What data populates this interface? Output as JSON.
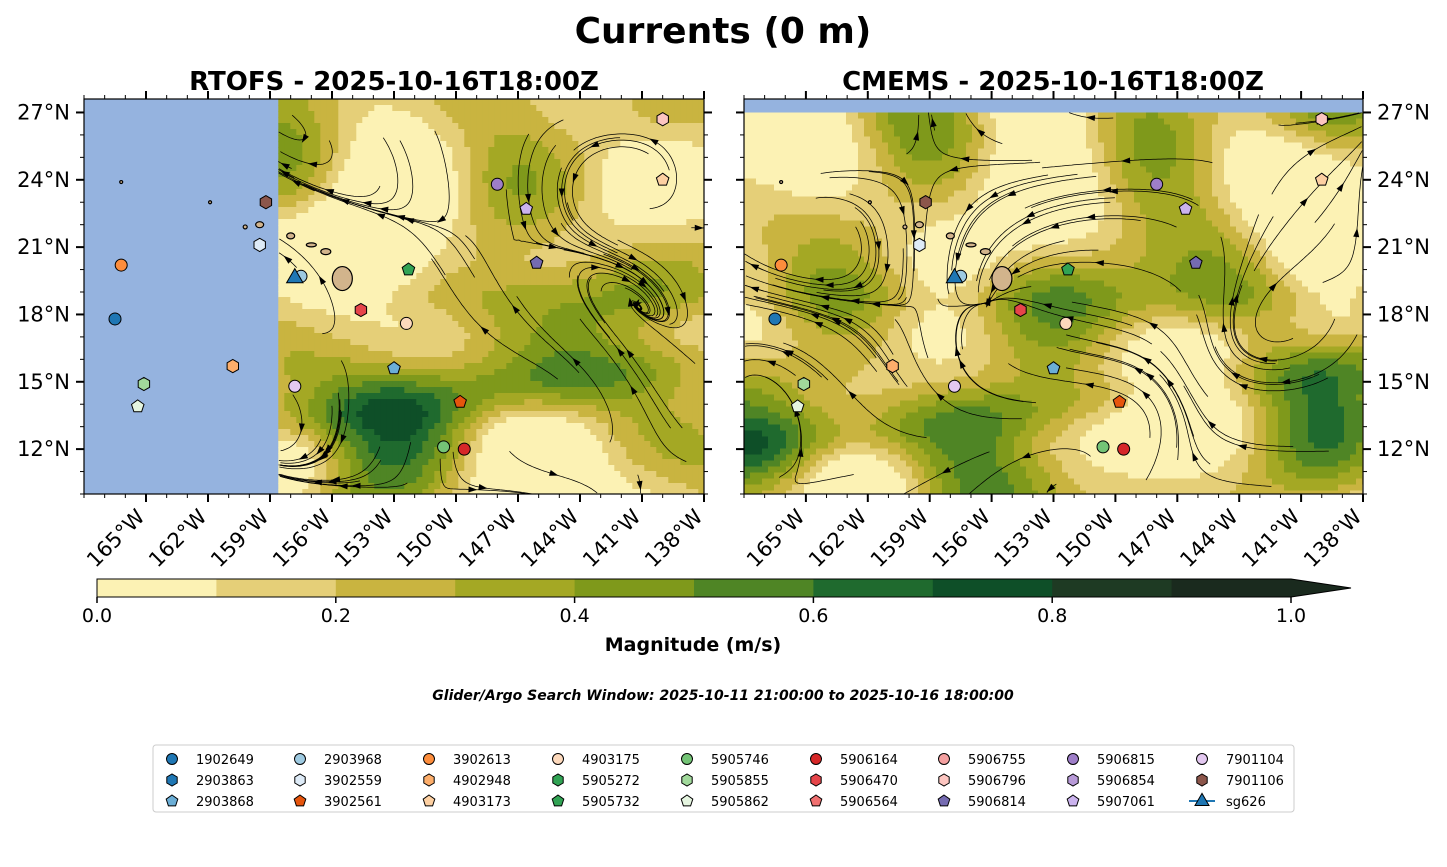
{
  "title": "Currents (0 m)",
  "search_window": "Glider/Argo Search Window: 2025-10-11 21:00:00 to 2025-10-16 18:00:00",
  "colors": {
    "ocean": "#95b3df",
    "land": "#d2b48c",
    "bins": [
      "#fcf2b4",
      "#e5cf78",
      "#c9b440",
      "#a4a824",
      "#7f991b",
      "#4f8525",
      "#1f6a2e",
      "#0e4f28",
      "#1e3a23",
      "#1a2a1e"
    ]
  },
  "colorbar": {
    "label": "Magnitude (m/s)",
    "ticks": [
      "0.0",
      "0.2",
      "0.4",
      "0.6",
      "0.8",
      "1.0"
    ],
    "tick_values": [
      0,
      0.2,
      0.4,
      0.6,
      0.8,
      1.0
    ],
    "min": 0,
    "max": 1.0,
    "step": 0.1,
    "extend": "max"
  },
  "chart_data": [
    {
      "type": "heatmap",
      "subtype": "streamplot-map",
      "title": "RTOFS - 2025-10-16T18:00Z",
      "xlim": [
        -168,
        -138
      ],
      "ylim": [
        10,
        27.6
      ],
      "x_ticks": [
        -165,
        -162,
        -159,
        -156,
        -153,
        -150,
        -147,
        -144,
        -141,
        -138
      ],
      "x_tick_labels": [
        "165°W",
        "162°W",
        "159°W",
        "156°W",
        "153°W",
        "150°W",
        "147°W",
        "144°W",
        "141°W",
        "138°W"
      ],
      "y_ticks": [
        12,
        15,
        18,
        21,
        24,
        27
      ],
      "y_tick_labels": [
        "12°N",
        "15°N",
        "18°N",
        "21°N",
        "24°N",
        "27°N"
      ],
      "y_axis_side": "left",
      "data_lon_range": [
        -158.6,
        -138
      ],
      "seed": 11
    },
    {
      "type": "heatmap",
      "subtype": "streamplot-map",
      "title": "CMEMS - 2025-10-16T18:00Z",
      "xlim": [
        -168,
        -138
      ],
      "ylim": [
        10,
        27.6
      ],
      "x_ticks": [
        -165,
        -162,
        -159,
        -156,
        -153,
        -150,
        -147,
        -144,
        -141,
        -138
      ],
      "x_tick_labels": [
        "165°W",
        "162°W",
        "159°W",
        "156°W",
        "153°W",
        "150°W",
        "147°W",
        "144°W",
        "141°W",
        "138°W"
      ],
      "y_ticks": [
        12,
        15,
        18,
        21,
        24,
        27
      ],
      "y_tick_labels": [
        "12°N",
        "15°N",
        "18°N",
        "21°N",
        "24°N",
        "27°N"
      ],
      "y_axis_side": "right",
      "data_lon_range": [
        -168,
        -138
      ],
      "data_lat_max": 27,
      "seed": 37
    }
  ],
  "floats": [
    {
      "id": "1902649",
      "lon": -166.5,
      "lat": 17.8,
      "shape": "circle",
      "color": "#1f77b4"
    },
    {
      "id": "2903863",
      "lon": -166.5,
      "lat": 17.8,
      "shape": "hexagon",
      "color": "#1f77b4",
      "hidden": true
    },
    {
      "id": "2903868",
      "lon": -153.0,
      "lat": 15.6,
      "shape": "pentagon",
      "color": "#6baed6"
    },
    {
      "id": "2903968",
      "lon": -157.5,
      "lat": 19.7,
      "shape": "circle",
      "color": "#9ecae1"
    },
    {
      "id": "3902559",
      "lon": -159.5,
      "lat": 21.1,
      "shape": "hexagon",
      "color": "#deebf7"
    },
    {
      "id": "3902561",
      "lon": -149.8,
      "lat": 14.1,
      "shape": "pentagon",
      "color": "#e6550d"
    },
    {
      "id": "3902613",
      "lon": -166.2,
      "lat": 20.2,
      "shape": "circle",
      "color": "#fd8d3c"
    },
    {
      "id": "4902948",
      "lon": -160.8,
      "lat": 15.7,
      "shape": "hexagon",
      "color": "#fdae6b"
    },
    {
      "id": "4903173",
      "lon": -140.0,
      "lat": 24.0,
      "shape": "pentagon",
      "color": "#fdd0a2"
    },
    {
      "id": "4903175",
      "lon": -152.4,
      "lat": 17.6,
      "shape": "circle",
      "color": "#fdd9bc"
    },
    {
      "id": "5905272",
      "lon": -159.2,
      "lat": 23.0,
      "shape": "hexagon",
      "color": "#31a354",
      "hidden": true
    },
    {
      "id": "5905732",
      "lon": -152.3,
      "lat": 20.0,
      "shape": "pentagon",
      "color": "#31a354"
    },
    {
      "id": "5905746",
      "lon": -150.6,
      "lat": 12.1,
      "shape": "circle",
      "color": "#74c476"
    },
    {
      "id": "5905855",
      "lon": -165.1,
      "lat": 14.9,
      "shape": "hexagon",
      "color": "#a1d99b"
    },
    {
      "id": "5905862",
      "lon": -165.4,
      "lat": 13.9,
      "shape": "pentagon",
      "color": "#e5f5e0"
    },
    {
      "id": "5906164",
      "lon": -149.6,
      "lat": 12.0,
      "shape": "circle",
      "color": "#d62728"
    },
    {
      "id": "5906470",
      "lon": -154.6,
      "lat": 18.2,
      "shape": "hexagon",
      "color": "#e6454a"
    },
    {
      "id": "5906564",
      "lon": -154.6,
      "lat": 18.2,
      "shape": "pentagon",
      "color": "#f07070",
      "hidden": true
    },
    {
      "id": "5906755",
      "lon": -149.0,
      "lat": 26.7,
      "shape": "circle",
      "color": "#f4a0a0",
      "hidden": true
    },
    {
      "id": "5906796",
      "lon": -140.0,
      "lat": 26.7,
      "shape": "hexagon",
      "color": "#fcc5c0"
    },
    {
      "id": "5906814",
      "lon": -146.1,
      "lat": 20.3,
      "shape": "pentagon",
      "color": "#756bb1"
    },
    {
      "id": "5906815",
      "lon": -148.0,
      "lat": 23.8,
      "shape": "circle",
      "color": "#9e7ec8"
    },
    {
      "id": "5906854",
      "lon": -149.0,
      "lat": 23.0,
      "shape": "hexagon",
      "color": "#b89ad8",
      "hidden": true
    },
    {
      "id": "5907061",
      "lon": -146.6,
      "lat": 22.7,
      "shape": "pentagon",
      "color": "#cbb3ee"
    },
    {
      "id": "7901104",
      "lon": -157.8,
      "lat": 14.8,
      "shape": "circle",
      "color": "#e3c8f0"
    },
    {
      "id": "7901106",
      "lon": -159.2,
      "lat": 23.0,
      "shape": "hexagon",
      "color": "#8c564b"
    },
    {
      "id": "5905272b",
      "lon": -153.4,
      "lat": 19.2,
      "shape": "hexagon",
      "color": "#31a354",
      "hidden": true
    },
    {
      "id": "extra-green",
      "lon": -153.4,
      "lat": 19.2,
      "shape": "circle",
      "color": "#31a354",
      "hidden": true
    }
  ],
  "glider": {
    "id": "sg626",
    "lon": -157.8,
    "lat": 19.7,
    "color": "#1f77b4"
  },
  "legend": {
    "columns": [
      [
        {
          "label": "1902649",
          "shape": "circle",
          "color": "#1f77b4"
        },
        {
          "label": "2903863",
          "shape": "hexagon",
          "color": "#1f77b4"
        },
        {
          "label": "2903868",
          "shape": "pentagon",
          "color": "#6baed6"
        }
      ],
      [
        {
          "label": "2903968",
          "shape": "circle",
          "color": "#9ecae1"
        },
        {
          "label": "3902559",
          "shape": "hexagon",
          "color": "#deebf7"
        },
        {
          "label": "3902561",
          "shape": "pentagon",
          "color": "#e6550d"
        }
      ],
      [
        {
          "label": "3902613",
          "shape": "circle",
          "color": "#fd8d3c"
        },
        {
          "label": "4902948",
          "shape": "hexagon",
          "color": "#fdae6b"
        },
        {
          "label": "4903173",
          "shape": "pentagon",
          "color": "#fdd0a2"
        }
      ],
      [
        {
          "label": "4903175",
          "shape": "circle",
          "color": "#fdd9bc"
        },
        {
          "label": "5905272",
          "shape": "hexagon",
          "color": "#31a354"
        },
        {
          "label": "5905732",
          "shape": "pentagon",
          "color": "#31a354"
        }
      ],
      [
        {
          "label": "5905746",
          "shape": "circle",
          "color": "#74c476"
        },
        {
          "label": "5905855",
          "shape": "hexagon",
          "color": "#a1d99b"
        },
        {
          "label": "5905862",
          "shape": "pentagon",
          "color": "#e5f5e0"
        }
      ],
      [
        {
          "label": "5906164",
          "shape": "circle",
          "color": "#d62728"
        },
        {
          "label": "5906470",
          "shape": "hexagon",
          "color": "#e6454a"
        },
        {
          "label": "5906564",
          "shape": "pentagon",
          "color": "#f07070"
        }
      ],
      [
        {
          "label": "5906755",
          "shape": "circle",
          "color": "#f4a0a0"
        },
        {
          "label": "5906796",
          "shape": "hexagon",
          "color": "#fcc5c0"
        },
        {
          "label": "5906814",
          "shape": "pentagon",
          "color": "#756bb1"
        }
      ],
      [
        {
          "label": "5906815",
          "shape": "circle",
          "color": "#9e7ec8"
        },
        {
          "label": "5906854",
          "shape": "hexagon",
          "color": "#b89ad8"
        },
        {
          "label": "5907061",
          "shape": "pentagon",
          "color": "#cbb3ee"
        }
      ],
      [
        {
          "label": "7901104",
          "shape": "circle",
          "color": "#e3c8f0"
        },
        {
          "label": "7901106",
          "shape": "hexagon",
          "color": "#8c564b"
        },
        {
          "label": "sg626",
          "shape": "triangle",
          "color": "#1f77b4"
        }
      ]
    ]
  }
}
